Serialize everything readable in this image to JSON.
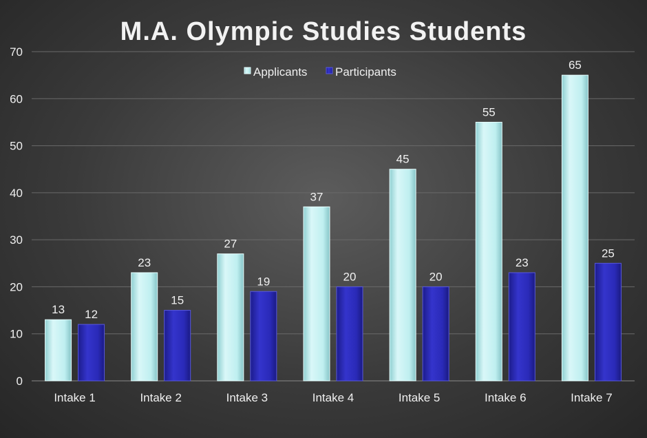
{
  "chart_data": {
    "type": "bar",
    "title": "M.A. Olympic Studies Students",
    "xlabel": "",
    "ylabel": "",
    "categories": [
      "Intake 1",
      "Intake 2",
      "Intake 3",
      "Intake 4",
      "Intake 5",
      "Intake 6",
      "Intake 7"
    ],
    "series": [
      {
        "name": "Applicants",
        "values": [
          13,
          23,
          27,
          37,
          45,
          55,
          65
        ],
        "color": "#bfeff0"
      },
      {
        "name": "Participants",
        "values": [
          12,
          15,
          19,
          20,
          20,
          23,
          25
        ],
        "color": "#2a2ab8"
      }
    ],
    "ylim": [
      0,
      70
    ],
    "yticks": [
      0,
      10,
      20,
      30,
      40,
      50,
      60,
      70
    ],
    "grid": true,
    "legend_position": "top-center",
    "background": "#3a3a3a"
  }
}
